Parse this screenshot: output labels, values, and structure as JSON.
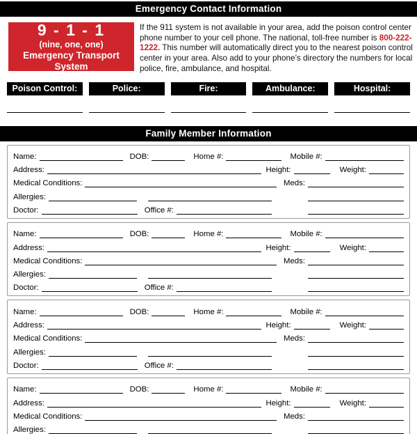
{
  "colors": {
    "bar_black": "#000000",
    "badge_red": "#ce262c",
    "phone_red": "#cc2127"
  },
  "header": {
    "title": "Emergency Contact Information"
  },
  "badge": {
    "number": "9 - 1 - 1",
    "phonetic": "(nine, one, one)",
    "caption": "Emergency Transport System"
  },
  "intro": {
    "before": "If the 911 system is not available in your area, add the poison control center phone number to your cell phone. The national, toll-free number is ",
    "phone": "800-222-1222.",
    "after": " This number will automatically direct you to the nearest poison control center in your area. Also add to your phone’s directory the numbers for local police, fire, ambulance, and hospital."
  },
  "contacts": {
    "labels": [
      "Poison Control:",
      "Police:",
      "Fire:",
      "Ambulance:",
      "Hospital:"
    ]
  },
  "family": {
    "title": "Family Member Information",
    "member_count": 4,
    "labels": {
      "name": "Name:",
      "dob": "DOB:",
      "home": "Home #:",
      "mobile": "Mobile #:",
      "address": "Address:",
      "height": "Height:",
      "weight": "Weight:",
      "medical": "Medical Conditions:",
      "meds": "Meds:",
      "allergies": "Allergies:",
      "doctor": "Doctor:",
      "office": "Office #:"
    }
  }
}
